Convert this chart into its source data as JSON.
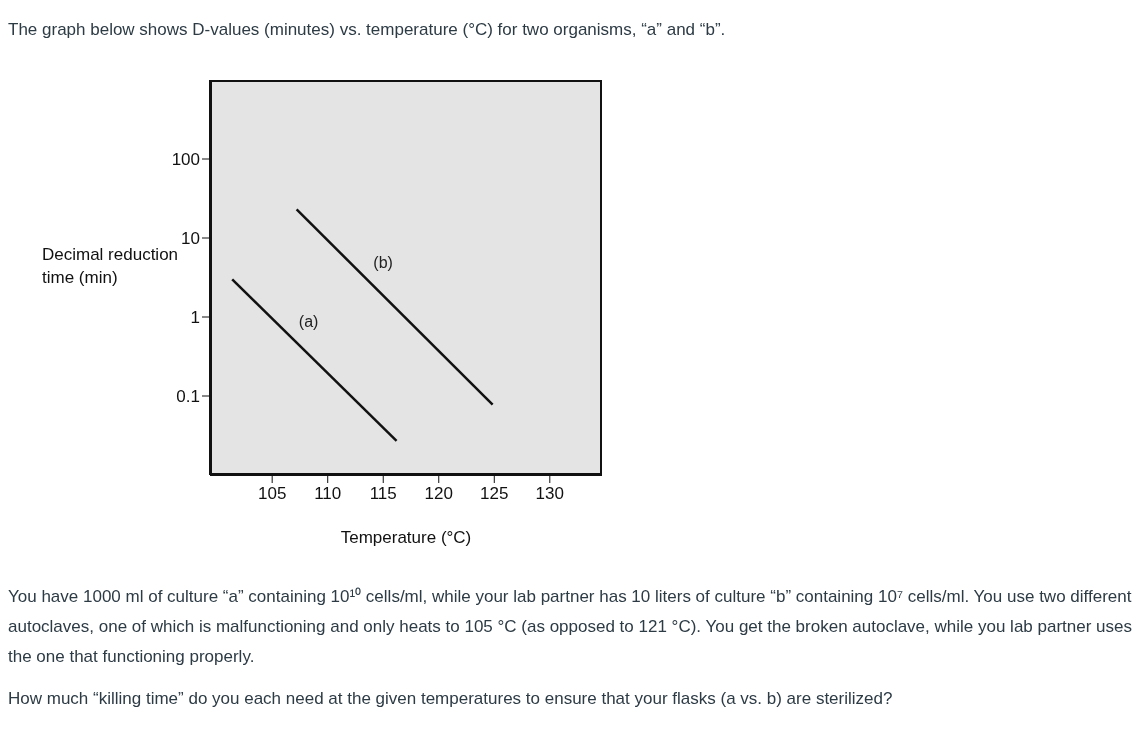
{
  "chart_data": {
    "type": "line",
    "title": "The graph below shows D-values (minutes) vs. temperature (°C) for two organisms, “a” and “b”.",
    "xlabel": "Temperature (°C)",
    "ylabel": "Decimal reduction time (min)",
    "xlim": [
      99.4,
      134.7
    ],
    "xticks": [
      105,
      110,
      115,
      120,
      125,
      130
    ],
    "ylim": [
      0.01,
      1000
    ],
    "yticks": [
      0.1,
      1,
      10,
      100
    ],
    "log": "y",
    "marker": "none",
    "line_style": "solid",
    "series": [
      {
        "name": "(a)",
        "color": "#111111",
        "x": [
          101.4,
          116.2
        ],
        "values": [
          3,
          0.027
        ]
      },
      {
        "name": "(b)",
        "color": "#111111",
        "x": [
          107.2,
          124.85
        ],
        "values": [
          23,
          0.078
        ]
      }
    ],
    "annotations": [
      "You have 1000 ml of culture “a” containing 10¹⁰ cells/ml, while your lab partner has 10 liters of culture “b” containing 10⁷ cells/ml. You use two different autoclaves, one of which is malfunctioning and only heats to 105 °C (as opposed to 121 °C). You get the broken autoclave, while you lab partner uses the one that functioning properly.",
      "How much “killing time” do you each need at the given temperatures to ensure that your flasks (a vs. b) are sterilized?"
    ]
  }
}
